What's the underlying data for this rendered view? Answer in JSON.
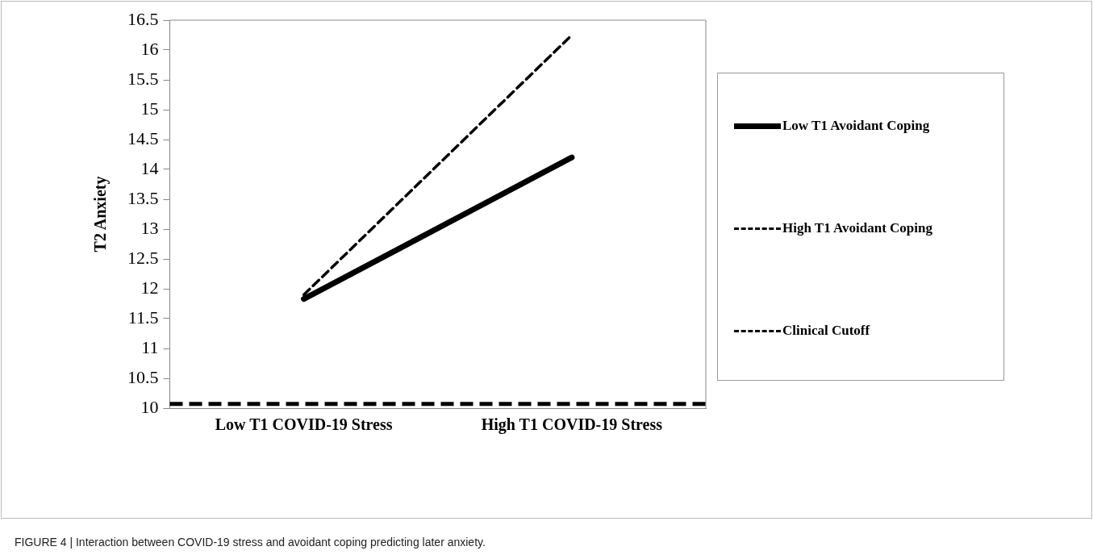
{
  "chart_data": {
    "type": "line",
    "ylabel": "T2 Anxiety",
    "categories": [
      "Low T1 COVID-19 Stress",
      "High T1 COVID-19 Stress"
    ],
    "series": [
      {
        "name": "Low T1 Avoidant Coping",
        "color": "#000000",
        "values": [
          11.83,
          14.2
        ],
        "line_style": "solid"
      },
      {
        "name": "High T1 Avoidant Coping",
        "color": "#000000",
        "values": [
          11.9,
          16.25
        ],
        "line_style": "dashed"
      }
    ],
    "ref_lines": [
      {
        "axis": "y",
        "value": 10.07,
        "label": "Clinical Cutoff",
        "color": "#000000",
        "line_style": "dashed"
      }
    ],
    "ylim": [
      10,
      16.5
    ],
    "yticks": [
      10,
      10.5,
      11,
      11.5,
      12,
      12.5,
      13,
      13.5,
      14,
      14.5,
      15,
      15.5,
      16,
      16.5
    ],
    "grid": false,
    "legend": "right",
    "marker": "none",
    "annotations": [
      "FIGURE 4 | Interaction between COVID-19 stress and avoidant coping predicting later anxiety."
    ]
  }
}
